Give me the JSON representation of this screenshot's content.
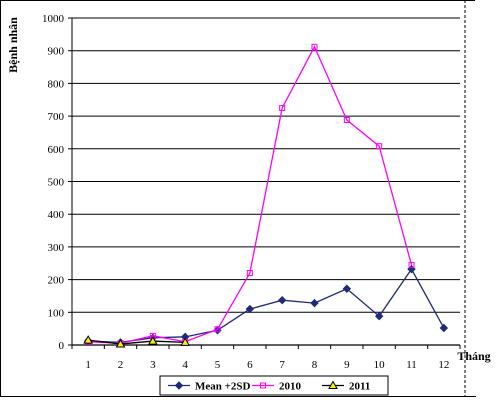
{
  "chart_data": {
    "type": "line",
    "title": "",
    "xlabel": "Tháng",
    "ylabel": "Bệnh nhân",
    "categories": [
      "1",
      "2",
      "3",
      "4",
      "5",
      "6",
      "7",
      "8",
      "9",
      "10",
      "11",
      "12"
    ],
    "ylim": [
      0,
      1000
    ],
    "yticks": [
      "0",
      "100",
      "200",
      "300",
      "400",
      "500",
      "600",
      "700",
      "800",
      "900",
      "1000"
    ],
    "grid": "horizontal",
    "legend_position": "bottom",
    "series": [
      {
        "name": "Mean +2SD",
        "color": "#1f2a78",
        "marker": "diamond",
        "values": [
          12,
          8,
          22,
          25,
          45,
          110,
          137,
          128,
          172,
          88,
          232,
          52
        ]
      },
      {
        "name": "2010",
        "color": "#ff00ff",
        "marker": "square",
        "values": [
          10,
          5,
          28,
          10,
          48,
          220,
          725,
          912,
          688,
          608,
          245,
          null
        ]
      },
      {
        "name": "2011",
        "color": "#000000",
        "marker": "triangle",
        "values": [
          15,
          3,
          12,
          8,
          null,
          null,
          null,
          null,
          null,
          null,
          null,
          null
        ]
      }
    ]
  }
}
